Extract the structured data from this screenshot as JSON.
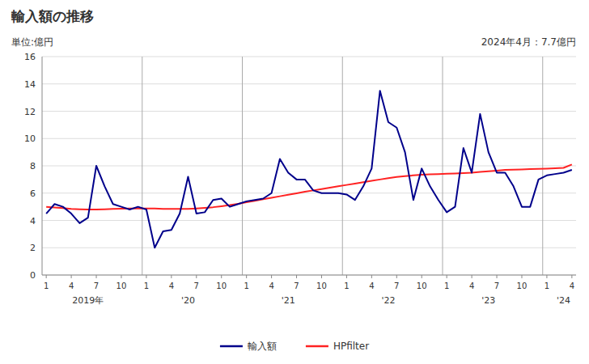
{
  "chart_data": {
    "type": "line",
    "title": "輸入額の推移",
    "ylabel": "単位:億円",
    "annotation": "2024年4月：7.7億円",
    "categories": [
      "1",
      null,
      null,
      "4",
      null,
      null,
      "7",
      null,
      null,
      "10",
      null,
      null,
      "1",
      null,
      null,
      "4",
      null,
      null,
      "7",
      null,
      null,
      "10",
      null,
      null,
      "1",
      null,
      null,
      "4",
      null,
      null,
      "7",
      null,
      null,
      "10",
      null,
      null,
      "1",
      null,
      null,
      "4",
      null,
      null,
      "7",
      null,
      null,
      "10",
      null,
      null,
      "1",
      null,
      null,
      "4",
      null,
      null,
      "7",
      null,
      null,
      "10",
      null,
      null,
      "1",
      null,
      null,
      "4"
    ],
    "year_labels": [
      {
        "label": "2019年",
        "index": 5
      },
      {
        "label": "'20",
        "index": 17
      },
      {
        "label": "'21",
        "index": 29
      },
      {
        "label": "'22",
        "index": 41
      },
      {
        "label": "'23",
        "index": 53
      },
      {
        "label": "'24",
        "index": 62
      }
    ],
    "x_dividers": [
      12,
      24,
      36,
      48,
      60
    ],
    "series": [
      {
        "name": "輸入額",
        "color": "#00008B",
        "values": [
          4.5,
          5.2,
          5.0,
          4.5,
          3.8,
          4.2,
          8.0,
          6.5,
          5.2,
          5.0,
          4.8,
          5.0,
          4.8,
          2.0,
          3.2,
          3.3,
          4.5,
          7.2,
          4.5,
          4.6,
          5.5,
          5.6,
          5.0,
          5.2,
          5.4,
          5.5,
          5.6,
          6.0,
          8.5,
          7.5,
          7.0,
          7.0,
          6.2,
          6.0,
          6.0,
          6.0,
          5.9,
          5.5,
          6.5,
          7.8,
          13.5,
          11.2,
          10.8,
          9.0,
          5.5,
          7.8,
          6.5,
          5.5,
          4.6,
          5.0,
          9.3,
          7.5,
          11.8,
          9.0,
          7.5,
          7.5,
          6.5,
          5.0,
          5.0,
          7.0,
          7.3,
          7.4,
          7.5,
          7.7
        ]
      },
      {
        "name": "HPfilter",
        "color": "#FF2222",
        "values": [
          5.0,
          4.95,
          4.9,
          4.85,
          4.82,
          4.8,
          4.8,
          4.82,
          4.84,
          4.86,
          4.88,
          4.88,
          4.88,
          4.87,
          4.85,
          4.84,
          4.84,
          4.85,
          4.88,
          4.92,
          4.97,
          5.04,
          5.12,
          5.22,
          5.33,
          5.44,
          5.55,
          5.66,
          5.77,
          5.88,
          5.99,
          6.1,
          6.2,
          6.3,
          6.4,
          6.5,
          6.6,
          6.7,
          6.8,
          6.9,
          7.0,
          7.1,
          7.18,
          7.25,
          7.3,
          7.35,
          7.38,
          7.4,
          7.42,
          7.44,
          7.47,
          7.5,
          7.55,
          7.6,
          7.65,
          7.7,
          7.72,
          7.74,
          7.76,
          7.78,
          7.8,
          7.82,
          7.85,
          8.1
        ]
      }
    ],
    "ylim": [
      0,
      16
    ],
    "yticks": [
      0,
      2,
      4,
      6,
      8,
      10,
      12,
      14,
      16
    ],
    "grid": true,
    "legend": "bottom"
  }
}
